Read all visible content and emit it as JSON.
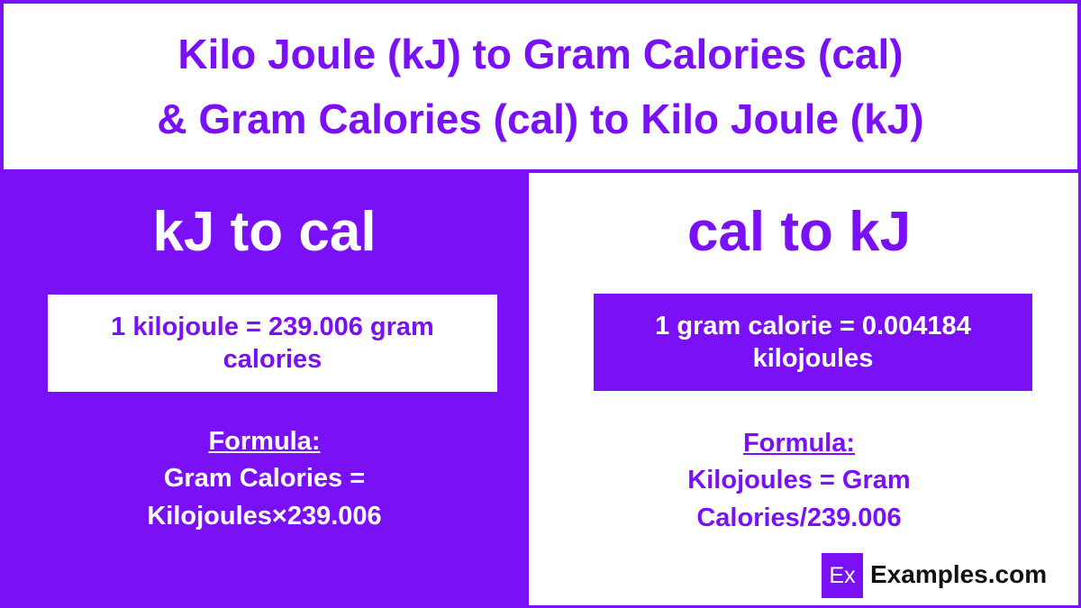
{
  "header": {
    "title_lines": [
      "Kilo Joule (kJ) to Gram Calories (cal)",
      "& Gram Calories (cal) to Kilo Joule (kJ)"
    ]
  },
  "left": {
    "heading": "kJ to cal",
    "box_lines": [
      "1 kilojoule = 239.006 gram",
      "calories"
    ],
    "formula_label": "Formula:",
    "formula_lines": [
      "Gram Calories =",
      "Kilojoules×239.006"
    ]
  },
  "right": {
    "heading": "cal to kJ",
    "box_lines": [
      "1 gram calorie = 0.004184",
      "kilojoules"
    ],
    "formula_label": "Formula:",
    "formula_lines": [
      "Kilojoules = Gram",
      "Calories/239.006"
    ]
  },
  "logo": {
    "mark": "Ex",
    "text": "Examples.com"
  }
}
